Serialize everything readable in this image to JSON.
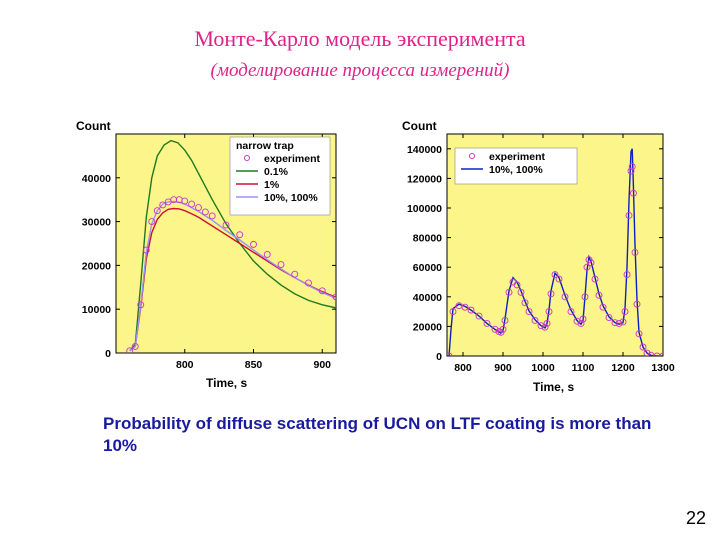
{
  "slide": {
    "title": "Монте-Карло модель эксперимента",
    "subtitle": "(моделирование процесса измерений)",
    "caption": "Probability of diffuse scattering of UCN  on LTF coating is more than 10%",
    "page_number": "22"
  },
  "colors": {
    "title": "#e0218a",
    "plot_bg": "#fbf58a",
    "experiment": "#cc33cc",
    "green": "#1f7a1f",
    "red": "#d01030",
    "lavender": "#9a90ff",
    "blue": "#1020c0",
    "caption": "#1a1aa0"
  },
  "chart_data": [
    {
      "type": "line",
      "title": "",
      "ylabel": "Count",
      "xlabel": "Time, s",
      "xlim": [
        750,
        910
      ],
      "ylim": [
        0,
        50000
      ],
      "x_ticks": [
        800,
        850,
        900
      ],
      "y_ticks": [
        0,
        10000,
        20000,
        30000,
        40000
      ],
      "y_tick_labels": [
        "0",
        "10000",
        "20000",
        "30000",
        "40000"
      ],
      "legend": {
        "position": "top-right",
        "header": "narrow trap"
      },
      "series": [
        {
          "name": "experiment",
          "style": "circles",
          "color_key": "experiment",
          "x": [
            760,
            764,
            768,
            772,
            776,
            780,
            784,
            788,
            792,
            796,
            800,
            805,
            810,
            815,
            820,
            830,
            840,
            850,
            860,
            870,
            880,
            890,
            900,
            910
          ],
          "y": [
            500,
            1500,
            11000,
            23500,
            30000,
            32500,
            33800,
            34500,
            35000,
            35000,
            34700,
            34000,
            33200,
            32200,
            31300,
            29200,
            27000,
            24800,
            22500,
            20200,
            18000,
            16000,
            14200,
            12800
          ]
        },
        {
          "name": "0.1%",
          "style": "line",
          "color_key": "green",
          "x": [
            760,
            764,
            768,
            772,
            776,
            780,
            785,
            790,
            795,
            800,
            805,
            810,
            815,
            820,
            830,
            840,
            850,
            860,
            870,
            880,
            890,
            900,
            910
          ],
          "y": [
            500,
            2000,
            16000,
            31000,
            40000,
            45000,
            47500,
            48500,
            48000,
            46300,
            44000,
            41000,
            38000,
            35000,
            29500,
            25000,
            21000,
            18000,
            15500,
            13500,
            12000,
            11000,
            10300
          ]
        },
        {
          "name": "1%",
          "style": "line",
          "color_key": "red",
          "x": [
            760,
            764,
            768,
            772,
            776,
            780,
            784,
            788,
            792,
            796,
            800,
            805,
            810,
            815,
            820,
            830,
            840,
            850,
            860,
            870,
            880,
            890,
            900,
            910
          ],
          "y": [
            500,
            1500,
            10500,
            21500,
            27500,
            30500,
            32000,
            32800,
            33000,
            32900,
            32500,
            31800,
            31000,
            30000,
            29000,
            27000,
            25000,
            23000,
            21000,
            19000,
            17200,
            15500,
            14000,
            12700
          ]
        },
        {
          "name": "10%, 100%",
          "style": "line",
          "color_key": "lavender",
          "x": [
            760,
            764,
            768,
            772,
            776,
            780,
            784,
            788,
            792,
            796,
            800,
            805,
            810,
            815,
            820,
            830,
            840,
            850,
            860,
            870,
            880,
            890,
            900,
            910
          ],
          "y": [
            500,
            1500,
            11000,
            23000,
            29500,
            32500,
            34000,
            34500,
            34600,
            34400,
            34000,
            33200,
            32300,
            31300,
            30300,
            28000,
            25800,
            23500,
            21300,
            19200,
            17200,
            15400,
            13800,
            12500
          ]
        }
      ]
    },
    {
      "type": "line",
      "title": "",
      "ylabel": "Count",
      "xlabel": "Time, s",
      "xlim": [
        760,
        1300
      ],
      "ylim": [
        0,
        150000
      ],
      "x_ticks": [
        800,
        900,
        1000,
        1100,
        1200,
        1300
      ],
      "y_ticks": [
        0,
        20000,
        40000,
        60000,
        80000,
        100000,
        120000,
        140000
      ],
      "y_tick_labels": [
        "0",
        "20000",
        "40000",
        "60000",
        "80000",
        "100000",
        "120000",
        "140000"
      ],
      "legend": {
        "position": "top-right"
      },
      "series": [
        {
          "name": "experiment",
          "style": "circles",
          "color_key": "experiment",
          "x": [
            765,
            775,
            790,
            805,
            820,
            840,
            860,
            880,
            890,
            895,
            900,
            905,
            915,
            925,
            935,
            945,
            955,
            965,
            980,
            995,
            1005,
            1010,
            1015,
            1020,
            1030,
            1040,
            1055,
            1070,
            1085,
            1095,
            1100,
            1105,
            1110,
            1115,
            1120,
            1130,
            1140,
            1150,
            1165,
            1180,
            1190,
            1200,
            1205,
            1210,
            1215,
            1220,
            1223,
            1226,
            1230,
            1235,
            1240,
            1250,
            1260,
            1270,
            1285,
            1300
          ],
          "y": [
            0,
            30000,
            34000,
            33000,
            31000,
            27000,
            22000,
            18000,
            16500,
            16000,
            18000,
            24000,
            43000,
            50000,
            48000,
            43000,
            36000,
            30000,
            24000,
            20500,
            19500,
            22000,
            30000,
            42000,
            55000,
            52000,
            40000,
            30000,
            23500,
            22000,
            25000,
            40000,
            60000,
            65000,
            63000,
            52000,
            41000,
            33000,
            26000,
            22500,
            22000,
            23000,
            30000,
            55000,
            95000,
            125000,
            128000,
            110000,
            70000,
            35000,
            15000,
            6000,
            2000,
            500,
            0,
            0
          ]
        },
        {
          "name": "10%, 100%",
          "style": "line",
          "color_key": "blue",
          "x": [
            765,
            770,
            775,
            790,
            805,
            820,
            840,
            860,
            880,
            895,
            900,
            905,
            915,
            925,
            935,
            945,
            955,
            965,
            980,
            995,
            1005,
            1010,
            1015,
            1020,
            1030,
            1040,
            1055,
            1070,
            1085,
            1095,
            1100,
            1105,
            1110,
            1115,
            1120,
            1130,
            1140,
            1150,
            1165,
            1180,
            1190,
            1200,
            1205,
            1210,
            1215,
            1220,
            1223,
            1226,
            1230,
            1235,
            1240,
            1250,
            1260,
            1270,
            1285,
            1300
          ],
          "y": [
            0,
            18000,
            32000,
            35000,
            33500,
            31000,
            27000,
            22000,
            18000,
            15500,
            17000,
            25000,
            44000,
            53000,
            50000,
            44000,
            37000,
            30500,
            24500,
            20500,
            19000,
            22000,
            31000,
            44000,
            56000,
            53000,
            41000,
            31000,
            24000,
            21500,
            24000,
            40000,
            58000,
            67000,
            64000,
            53000,
            42000,
            34000,
            26500,
            22500,
            21500,
            22500,
            32000,
            60000,
            105000,
            138000,
            140000,
            115000,
            75000,
            38000,
            16000,
            6000,
            2000,
            500,
            0,
            0
          ]
        }
      ]
    }
  ]
}
